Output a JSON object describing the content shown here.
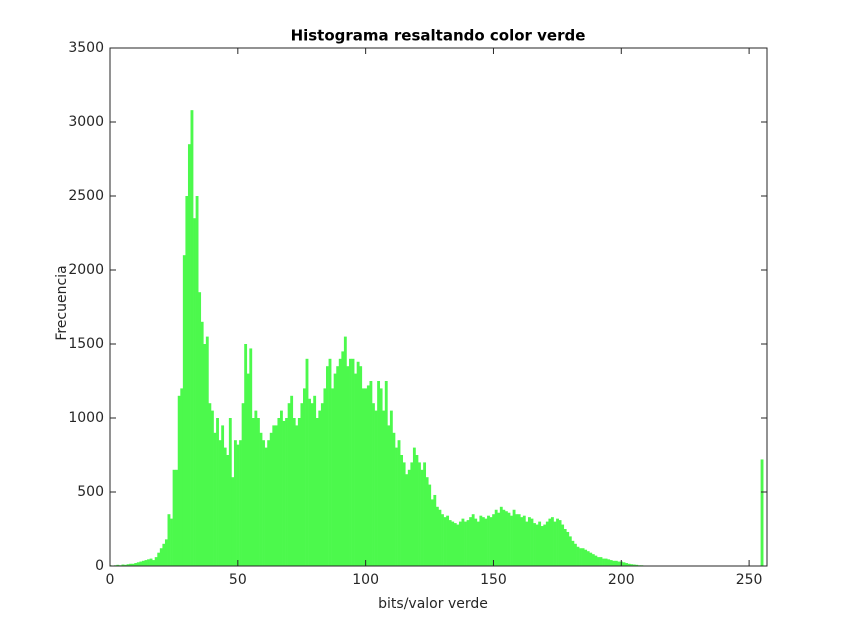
{
  "chart_data": {
    "type": "histogram",
    "title": "Histograma resaltando color verde",
    "xlabel": "bits/valor verde",
    "ylabel": "Frecuencia",
    "color": "#4cf94c",
    "xlim": [
      0,
      257
    ],
    "ylim": [
      0,
      3500
    ],
    "xticks": [
      0,
      50,
      100,
      150,
      200,
      250
    ],
    "yticks": [
      0,
      500,
      1000,
      1500,
      2000,
      2500,
      3000,
      3500
    ],
    "bins": [
      -0.5,
      0.5,
      1.5,
      2.5,
      3.5,
      4.5,
      5.5,
      6.5,
      7.5,
      8.5,
      9.5,
      10.5,
      11.5,
      12.5,
      13.5,
      14.5,
      15.5,
      16.5,
      17.5,
      18.5,
      19.5,
      20.5,
      21.5,
      22.5,
      23.5,
      24.5,
      25.5,
      26.5,
      27.5,
      28.5,
      29.5,
      30.5,
      31.5,
      32.5,
      33.5,
      34.5,
      35.5,
      36.5,
      37.5,
      38.5,
      39.5,
      40.5,
      41.5,
      42.5,
      43.5,
      44.5,
      45.5,
      46.5,
      47.5,
      48.5,
      49.5,
      50.5,
      51.5,
      52.5,
      53.5,
      54.5,
      55.5,
      56.5,
      57.5,
      58.5,
      59.5,
      60.5,
      61.5,
      62.5,
      63.5,
      64.5,
      65.5,
      66.5,
      67.5,
      68.5,
      69.5,
      70.5,
      71.5,
      72.5,
      73.5,
      74.5,
      75.5,
      76.5,
      77.5,
      78.5,
      79.5,
      80.5,
      81.5,
      82.5,
      83.5,
      84.5,
      85.5,
      86.5,
      87.5,
      88.5,
      89.5,
      90.5,
      91.5,
      92.5,
      93.5,
      94.5,
      95.5,
      96.5,
      97.5,
      98.5,
      99.5,
      100.5,
      101.5,
      102.5,
      103.5,
      104.5,
      105.5,
      106.5,
      107.5,
      108.5,
      109.5,
      110.5,
      111.5,
      112.5,
      113.5,
      114.5,
      115.5,
      116.5,
      117.5,
      118.5,
      119.5,
      120.5,
      121.5,
      122.5,
      123.5,
      124.5,
      125.5,
      126.5,
      127.5,
      128.5,
      129.5,
      130.5,
      131.5,
      132.5,
      133.5,
      134.5,
      135.5,
      136.5,
      137.5,
      138.5,
      139.5,
      140.5,
      141.5,
      142.5,
      143.5,
      144.5,
      145.5,
      146.5,
      147.5,
      148.5,
      149.5,
      150.5,
      151.5,
      152.5,
      153.5,
      154.5,
      155.5,
      156.5,
      157.5,
      158.5,
      159.5,
      160.5,
      161.5,
      162.5,
      163.5,
      164.5,
      165.5,
      166.5,
      167.5,
      168.5,
      169.5,
      170.5,
      171.5,
      172.5,
      173.5,
      174.5,
      175.5,
      176.5,
      177.5,
      178.5,
      179.5,
      180.5,
      181.5,
      182.5,
      183.5,
      184.5,
      185.5,
      186.5,
      187.5,
      188.5,
      189.5,
      190.5,
      191.5,
      192.5,
      193.5,
      194.5,
      195.5,
      196.5,
      197.5,
      198.5,
      199.5,
      200.5,
      201.5,
      202.5,
      203.5,
      204.5,
      205.5,
      206.5,
      207.5,
      208.5,
      209.5,
      210.5,
      211.5,
      212.5,
      213.5,
      214.5,
      215.5,
      216.5,
      217.5,
      218.5,
      219.5,
      220.5,
      221.5,
      222.5,
      223.5,
      224.5,
      225.5,
      226.5,
      227.5,
      228.5,
      229.5,
      230.5,
      231.5,
      232.5,
      233.5,
      234.5,
      235.5,
      236.5,
      237.5,
      238.5,
      239.5,
      240.5,
      241.5,
      242.5,
      243.5,
      244.5,
      245.5,
      246.5,
      247.5,
      248.5,
      249.5,
      250.5,
      251.5,
      252.5,
      253.5,
      254.5,
      255.5
    ],
    "values": [
      5,
      3,
      5,
      8,
      5,
      10,
      8,
      12,
      15,
      15,
      20,
      25,
      30,
      35,
      40,
      45,
      50,
      40,
      60,
      90,
      120,
      150,
      180,
      350,
      320,
      650,
      650,
      1150,
      1200,
      2100,
      2500,
      2850,
      3080,
      2350,
      2500,
      1850,
      1650,
      1500,
      1550,
      1100,
      1050,
      900,
      1000,
      850,
      950,
      800,
      750,
      1000,
      600,
      850,
      820,
      850,
      1100,
      1500,
      1300,
      1470,
      1000,
      1050,
      1000,
      900,
      850,
      800,
      850,
      900,
      950,
      950,
      1000,
      1050,
      980,
      1000,
      1100,
      1150,
      1000,
      950,
      1000,
      1100,
      1200,
      1400,
      1130,
      1100,
      1150,
      1000,
      1050,
      1100,
      1200,
      1350,
      1400,
      1200,
      1300,
      1350,
      1400,
      1450,
      1550,
      1350,
      1400,
      1400,
      1300,
      1380,
      1350,
      1200,
      1200,
      1220,
      1250,
      1100,
      1050,
      1250,
      1200,
      1050,
      1250,
      950,
      1050,
      900,
      800,
      850,
      750,
      700,
      620,
      650,
      700,
      800,
      750,
      700,
      650,
      700,
      600,
      550,
      450,
      480,
      400,
      380,
      350,
      330,
      340,
      310,
      300,
      290,
      280,
      300,
      320,
      300,
      310,
      330,
      350,
      320,
      300,
      340,
      330,
      320,
      340,
      330,
      350,
      380,
      360,
      400,
      380,
      370,
      360,
      340,
      380,
      350,
      350,
      330,
      340,
      300,
      330,
      320,
      290,
      280,
      300,
      270,
      280,
      300,
      320,
      330,
      300,
      320,
      310,
      280,
      250,
      230,
      200,
      170,
      150,
      130,
      120,
      120,
      110,
      100,
      90,
      80,
      70,
      60,
      60,
      50,
      50,
      45,
      40,
      35,
      35,
      30,
      30,
      25,
      20,
      15,
      12,
      10,
      8,
      5,
      5,
      3,
      2,
      1,
      0,
      0,
      0,
      0,
      0,
      0,
      0,
      0,
      0,
      0,
      0,
      0,
      0,
      0,
      0,
      0,
      0,
      0,
      0,
      0,
      0,
      0,
      0,
      0,
      0,
      0,
      0,
      0,
      0,
      0,
      0,
      0,
      0,
      0,
      0,
      0,
      0,
      0,
      0,
      0,
      0,
      0,
      0,
      720
    ]
  }
}
